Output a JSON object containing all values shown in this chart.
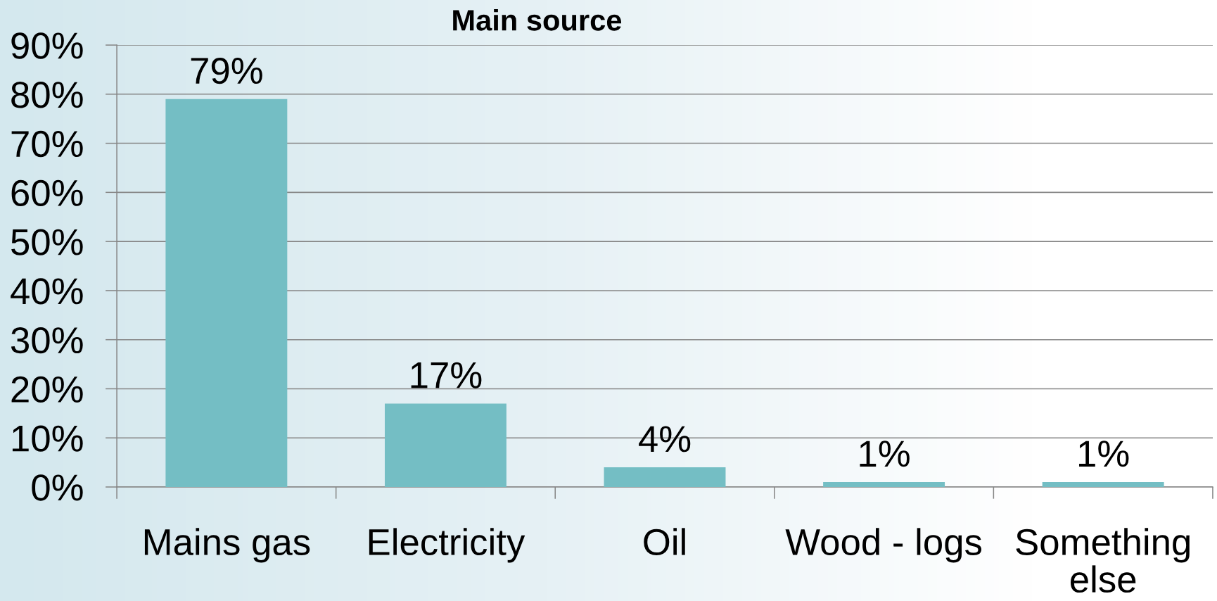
{
  "chart_data": {
    "type": "bar",
    "title": "Main source",
    "categories": [
      "Mains gas",
      "Electricity",
      "Oil",
      "Wood - logs",
      "Something else"
    ],
    "values": [
      79,
      17,
      4,
      1,
      1
    ],
    "value_labels": [
      "79%",
      "17%",
      "4%",
      "1%",
      "1%"
    ],
    "color": "#74bec4",
    "ylim": [
      0,
      90
    ],
    "yticks": [
      {
        "value": 0,
        "label": "0%"
      },
      {
        "value": 10,
        "label": "10%"
      },
      {
        "value": 20,
        "label": "20%"
      },
      {
        "value": 30,
        "label": "30%"
      },
      {
        "value": 40,
        "label": "40%"
      },
      {
        "value": 50,
        "label": "50%"
      },
      {
        "value": 60,
        "label": "60%"
      },
      {
        "value": 70,
        "label": "70%"
      },
      {
        "value": 80,
        "label": "80%"
      },
      {
        "value": 90,
        "label": "90%"
      }
    ],
    "grid": "y"
  }
}
